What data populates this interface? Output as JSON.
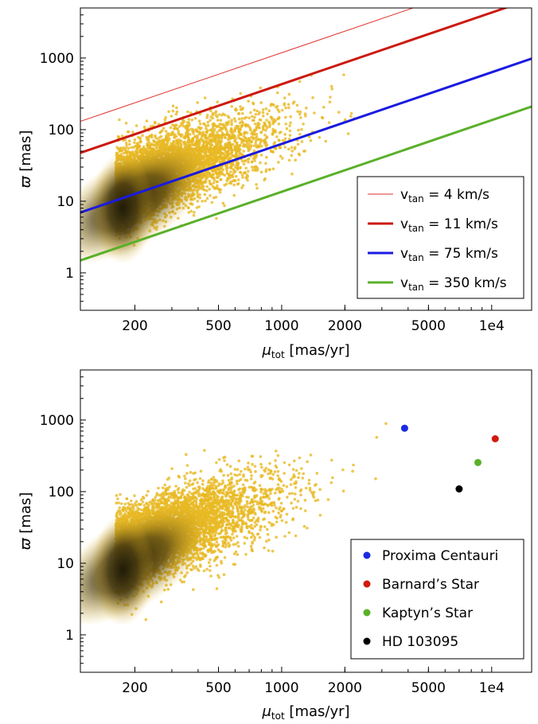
{
  "chart_data": [
    {
      "type": "scatter",
      "xscale": "log",
      "yscale": "log",
      "xlim": [
        110,
        15500
      ],
      "ylim": [
        0.3,
        5000
      ],
      "x_ticks": [
        200,
        500,
        1000,
        2000,
        5000,
        10000
      ],
      "x_tick_labels": [
        "200",
        "500",
        "1000",
        "2000",
        "5000",
        "1e4"
      ],
      "y_ticks": [
        1,
        10,
        100,
        1000
      ],
      "y_tick_labels": [
        "1",
        "10",
        "100",
        "1000"
      ],
      "xlabel": {
        "main": "μ",
        "sub": "tot",
        "unit": "[mas/yr]"
      },
      "ylabel": {
        "main": "ϖ",
        "unit": "[mas]"
      },
      "grid": false,
      "legend_position": "lower-right",
      "scatter_color": "#e8b923",
      "density_core_color": "#2a2208",
      "lines": [
        {
          "v": "v",
          "sub": "tan",
          "value": "= 4 km/s",
          "vtan_kms": 4,
          "color": "#e0302a",
          "width": 1
        },
        {
          "v": "v",
          "sub": "tan",
          "value": "= 11 km/s",
          "vtan_kms": 11,
          "color": "#cc1a10",
          "width": 3
        },
        {
          "v": "v",
          "sub": "tan",
          "value": "= 75 km/s",
          "vtan_kms": 75,
          "color": "#1a1ae0",
          "width": 3
        },
        {
          "v": "v",
          "sub": "tan",
          "value": "= 350 km/s",
          "vtan_kms": 350,
          "color": "#5ab02a",
          "width": 3
        }
      ]
    },
    {
      "type": "scatter",
      "xscale": "log",
      "yscale": "log",
      "xlim": [
        110,
        15500
      ],
      "ylim": [
        0.3,
        5000
      ],
      "x_ticks": [
        200,
        500,
        1000,
        2000,
        5000,
        10000
      ],
      "x_tick_labels": [
        "200",
        "500",
        "1000",
        "2000",
        "5000",
        "1e4"
      ],
      "y_ticks": [
        1,
        10,
        100,
        1000
      ],
      "y_tick_labels": [
        "1",
        "10",
        "100",
        "1000"
      ],
      "xlabel": {
        "main": "μ",
        "sub": "tot",
        "unit": "[mas/yr]"
      },
      "ylabel": {
        "main": "ϖ",
        "unit": "[mas]"
      },
      "grid": false,
      "legend_position": "lower-right",
      "scatter_color": "#e8b923",
      "density_core_color": "#2a2208",
      "highlighted_stars": [
        {
          "name": "Proxima Centauri",
          "x": 3850,
          "y": 768,
          "color": "#1a2ae0"
        },
        {
          "name": "Barnard’s Star",
          "x": 10400,
          "y": 547,
          "color": "#d01a10"
        },
        {
          "name": "Kaptyn’s Star",
          "x": 8600,
          "y": 255,
          "color": "#5ab02a"
        },
        {
          "name": "HD 103095",
          "x": 7000,
          "y": 109,
          "color": "#000000"
        }
      ]
    }
  ]
}
